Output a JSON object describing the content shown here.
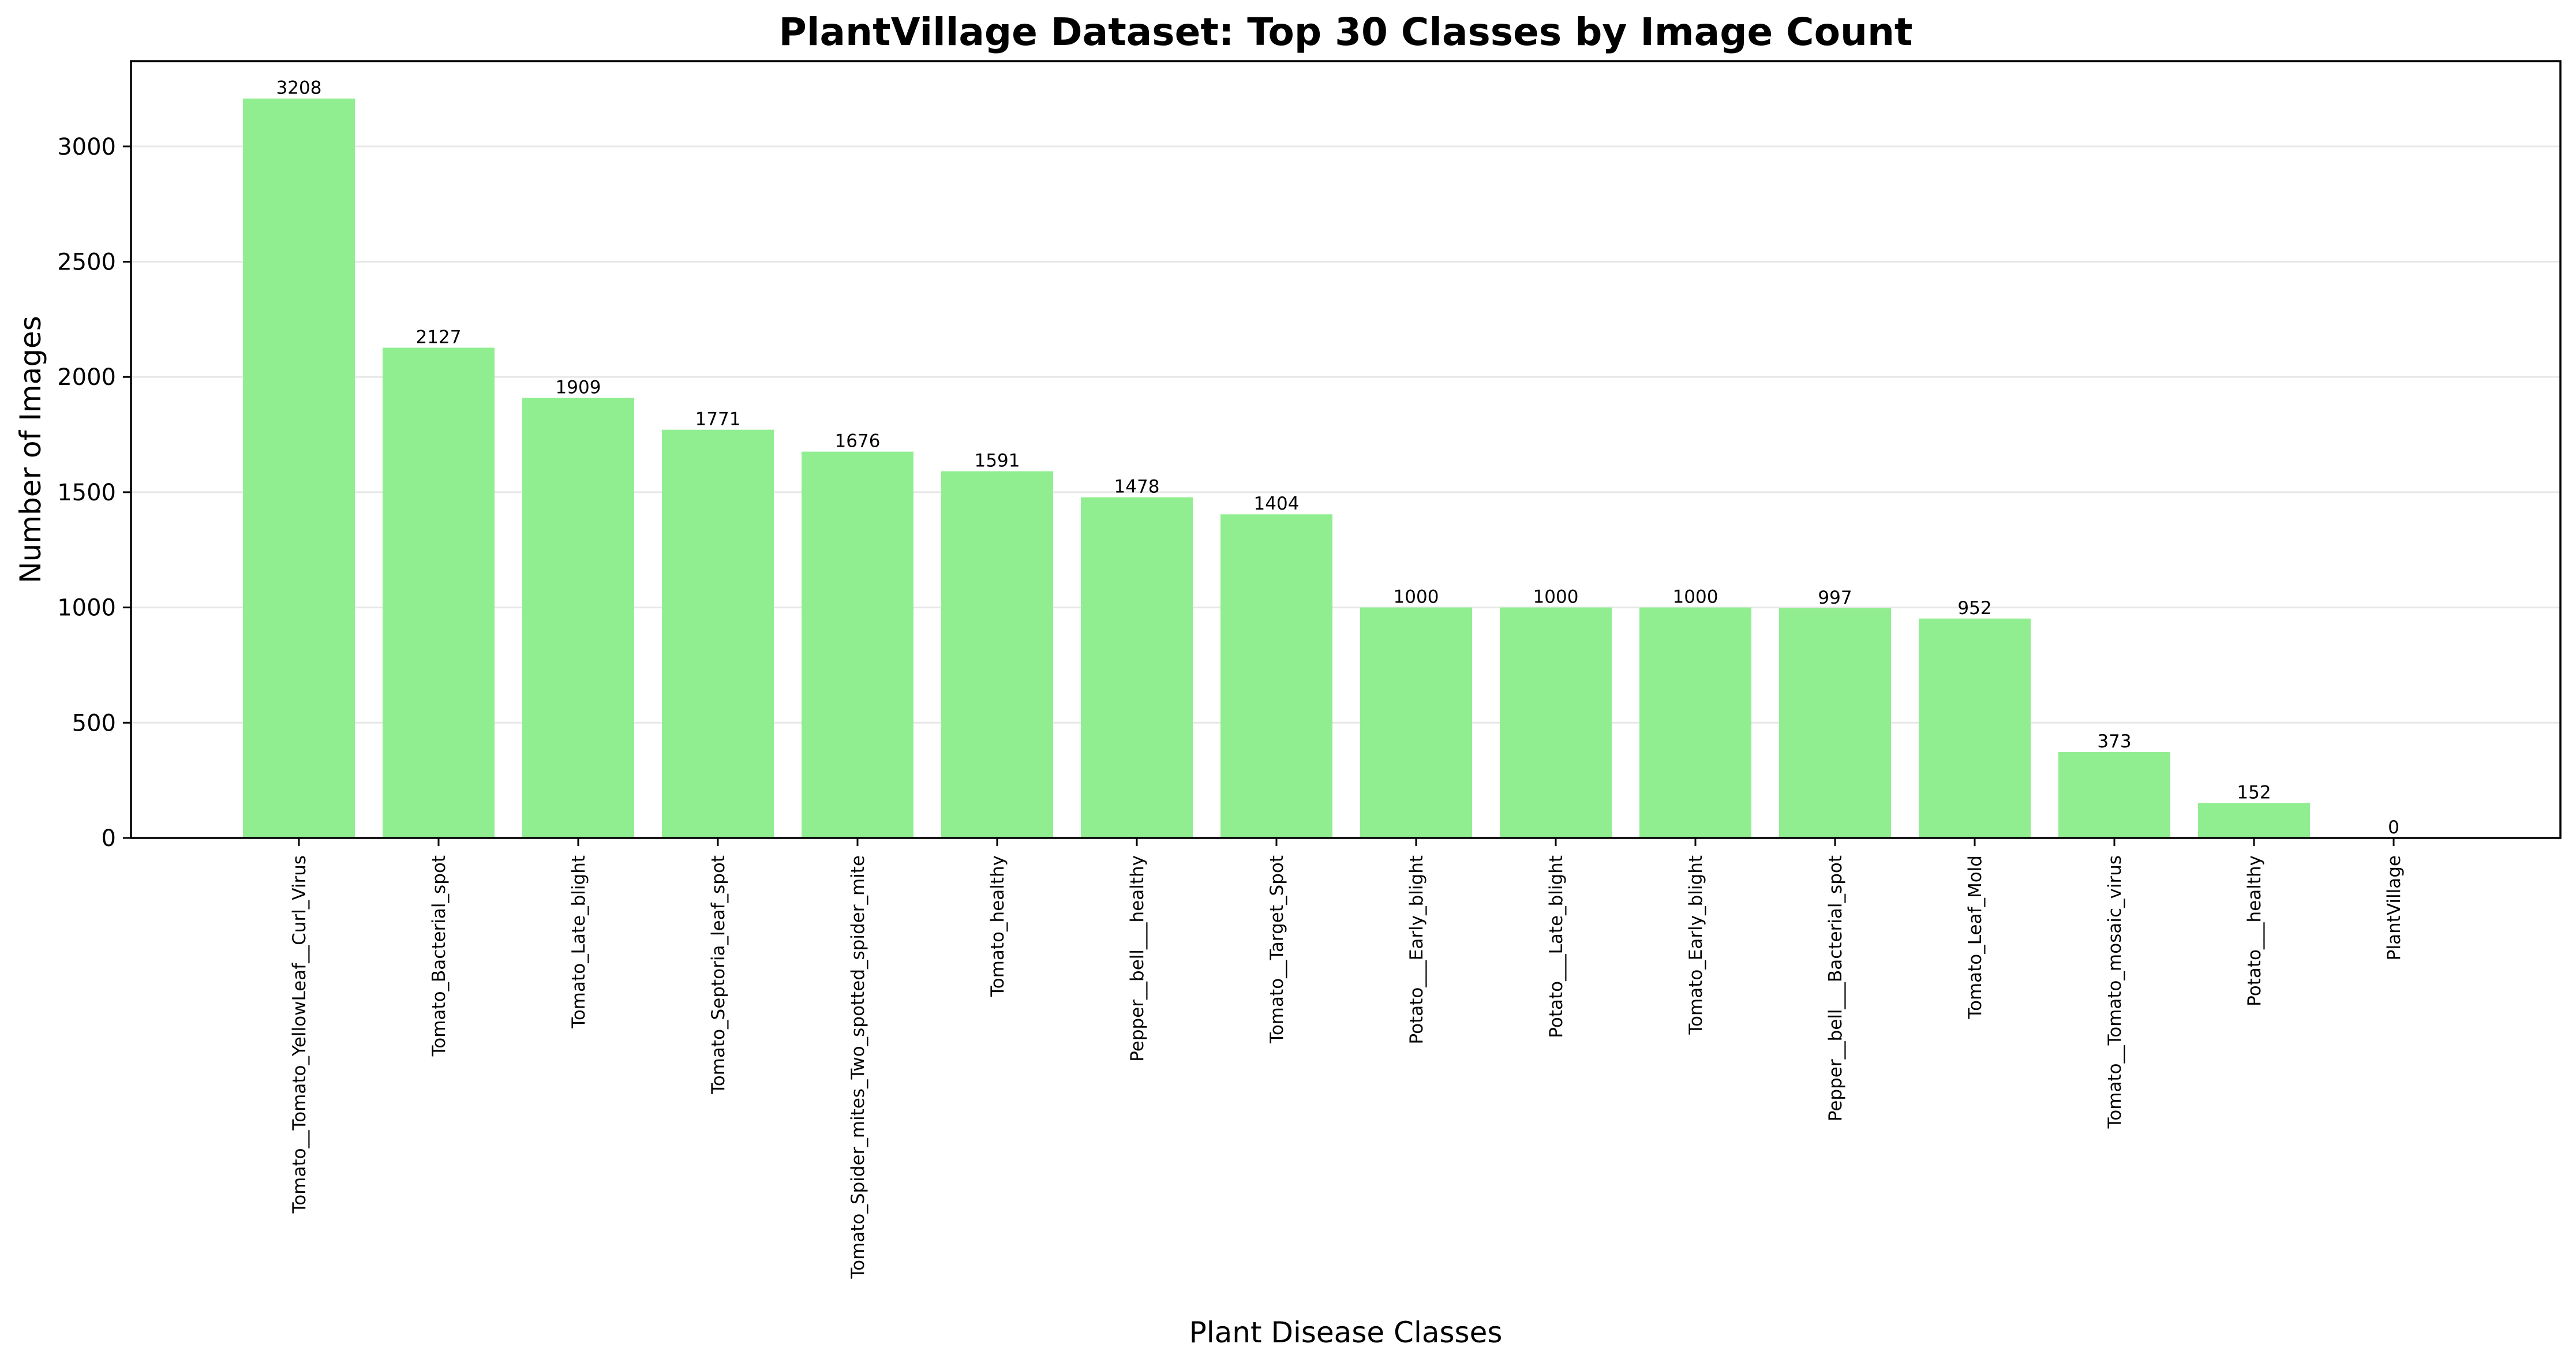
{
  "chart_data": {
    "type": "bar",
    "title": "PlantVillage Dataset: Top 30 Classes by Image Count",
    "xlabel": "Plant Disease Classes",
    "ylabel": "Number of Images",
    "ylim": [
      0,
      3370
    ],
    "yticks": [
      0,
      500,
      1000,
      1500,
      2000,
      2500,
      3000
    ],
    "grid": "y",
    "bar_color": "#90ee90",
    "categories": [
      "Tomato__Tomato_YellowLeaf__Curl_Virus",
      "Tomato_Bacterial_spot",
      "Tomato_Late_blight",
      "Tomato_Septoria_leaf_spot",
      "Tomato_Spider_mites_Two_spotted_spider_mite",
      "Tomato_healthy",
      "Pepper__bell___healthy",
      "Tomato__Target_Spot",
      "Potato___Early_blight",
      "Potato___Late_blight",
      "Tomato_Early_blight",
      "Pepper__bell___Bacterial_spot",
      "Tomato_Leaf_Mold",
      "Tomato__Tomato_mosaic_virus",
      "Potato___healthy",
      "PlantVillage"
    ],
    "values": [
      3208,
      2127,
      1909,
      1771,
      1676,
      1591,
      1478,
      1404,
      1000,
      1000,
      1000,
      997,
      952,
      373,
      152,
      0
    ]
  }
}
